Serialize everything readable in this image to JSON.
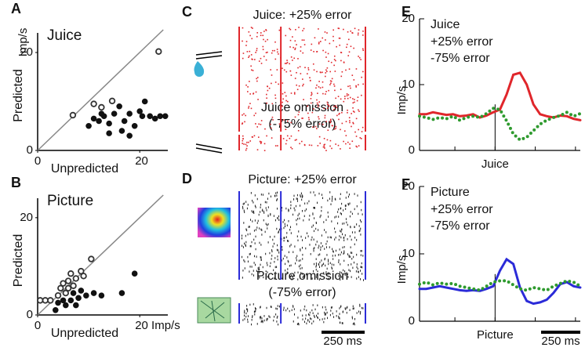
{
  "chart_data": [
    {
      "type": "scatter",
      "panel": "A",
      "title": "Juice",
      "xlabel": "Unpredicted",
      "ylabel": "Predicted",
      "unit": "Imp/s",
      "xlim": [
        0,
        25.5
      ],
      "ylim": [
        0,
        24
      ],
      "xticks": [
        0,
        20
      ],
      "yticks": [
        0,
        20
      ],
      "series": [
        {
          "marker": "open",
          "color": "#333333",
          "x": [
            23.7,
            6.9,
            14.6,
            11,
            12.5
          ],
          "values": [
            20.2,
            7.2,
            10.1,
            9.5,
            8.8
          ]
        },
        {
          "marker": "filled",
          "color": "#111111",
          "x": [
            10,
            11,
            12,
            13,
            14,
            15,
            16,
            16.5,
            17,
            18,
            19,
            20,
            21,
            22,
            23,
            24,
            25,
            14,
            18,
            12.5,
            20.5
          ],
          "values": [
            5,
            6.5,
            6,
            7,
            5.5,
            7.5,
            9,
            4,
            6,
            7.5,
            5,
            8,
            10,
            7,
            6.5,
            7,
            7,
            3.5,
            3,
            7.5,
            7
          ]
        }
      ]
    },
    {
      "type": "scatter",
      "panel": "B",
      "title": "Picture",
      "xlabel": "Unpredicted",
      "ylabel": "Predicted",
      "xlim": [
        0,
        25.5
      ],
      "ylim": [
        0,
        24
      ],
      "xticks": [
        0,
        {
          "value": 20,
          "label": "20 Imp/s"
        }
      ],
      "yticks": [
        0,
        20
      ],
      "series": [
        {
          "marker": "open",
          "color": "#333333",
          "x": [
            0.5,
            1.5,
            2.5,
            4,
            4.5,
            5,
            5.5,
            6,
            6.5,
            7,
            7.5,
            8.5,
            9,
            10.5,
            6
          ],
          "values": [
            3,
            3,
            3,
            4,
            5.5,
            6.5,
            4.5,
            7,
            8.5,
            6,
            7.5,
            9,
            8,
            11.5,
            5.5
          ]
        },
        {
          "marker": "filled",
          "color": "#111111",
          "x": [
            3.5,
            4,
            5,
            5.5,
            6.5,
            7,
            8,
            8.5,
            9.5,
            11,
            12.5,
            16.5,
            19,
            7.5
          ],
          "values": [
            1,
            2.5,
            3,
            2,
            3,
            4.5,
            3.5,
            5,
            4,
            4.5,
            4,
            4.5,
            8.5,
            2
          ]
        }
      ]
    },
    {
      "type": "raster",
      "panel": "C",
      "color": "#e0262b",
      "title": "Juice: +25% error",
      "omission_title": "Juice omission",
      "omission_subtitle": "(-75% error)",
      "omission_color": "#2e7d1e"
    },
    {
      "type": "raster",
      "panel": "D",
      "color": "#2b2bd8",
      "title": "Picture: +25% error",
      "omission_title": "Picture omission",
      "omission_subtitle": "(-75% error)",
      "omission_color": "#2e7d1e",
      "scalebar": "250 ms"
    },
    {
      "type": "line",
      "panel": "E",
      "ylabel": "Imp/s",
      "xlabel": "Juice",
      "legend_title": "Juice",
      "legend_title_color": "#e0262b",
      "ylim": [
        0,
        20
      ],
      "yticks": [
        0,
        10,
        20
      ],
      "series": [
        {
          "name": "+25% error",
          "color": "#e0262b",
          "style": "solid",
          "values": [
            5.5,
            5.5,
            5.8,
            5.6,
            5.4,
            5.5,
            5.2,
            5.3,
            5.5,
            5.0,
            5.3,
            5.8,
            6.2,
            8.5,
            11.5,
            11.8,
            10,
            7,
            5.5,
            5.2,
            5.0,
            5.3,
            5.2,
            4.8,
            4.6
          ]
        },
        {
          "name": "-75% error",
          "color": "#2e9a2e",
          "style": "dotted",
          "values": [
            5.2,
            5.0,
            4.7,
            5.0,
            4.8,
            5.2,
            4.6,
            5.0,
            5.2,
            5.0,
            5.6,
            6.4,
            6.2,
            4.5,
            2.5,
            1.6,
            2.0,
            3.0,
            4.0,
            4.6,
            5.0,
            5.3,
            5.8,
            5.2,
            5.6
          ]
        }
      ]
    },
    {
      "type": "line",
      "panel": "F",
      "ylabel": "Imp/s",
      "xlabel": "Picture",
      "legend_title": "Picture",
      "legend_title_color": "#2b2bd8",
      "scalebar": "250 ms",
      "ylim": [
        0,
        20
      ],
      "yticks": [
        0,
        10,
        20
      ],
      "series": [
        {
          "name": "+25% error",
          "color": "#2b2bd8",
          "style": "solid",
          "values": [
            4.8,
            4.8,
            5.0,
            5.2,
            5.0,
            4.8,
            4.6,
            4.5,
            4.6,
            4.5,
            4.8,
            5.2,
            7.5,
            9.2,
            8.5,
            5.0,
            3.0,
            2.6,
            2.8,
            3.2,
            4.2,
            5.5,
            5.8,
            5.2,
            5.0
          ]
        },
        {
          "name": "-75% error",
          "color": "#2e9a2e",
          "style": "dotted",
          "values": [
            5.5,
            5.8,
            5.4,
            5.7,
            5.5,
            5.6,
            5.2,
            5.0,
            4.8,
            4.6,
            5.2,
            5.8,
            6.0,
            6.0,
            5.4,
            4.8,
            4.6,
            5.0,
            4.8,
            4.6,
            5.2,
            5.6,
            6.0,
            5.8,
            5.2
          ]
        }
      ]
    }
  ]
}
